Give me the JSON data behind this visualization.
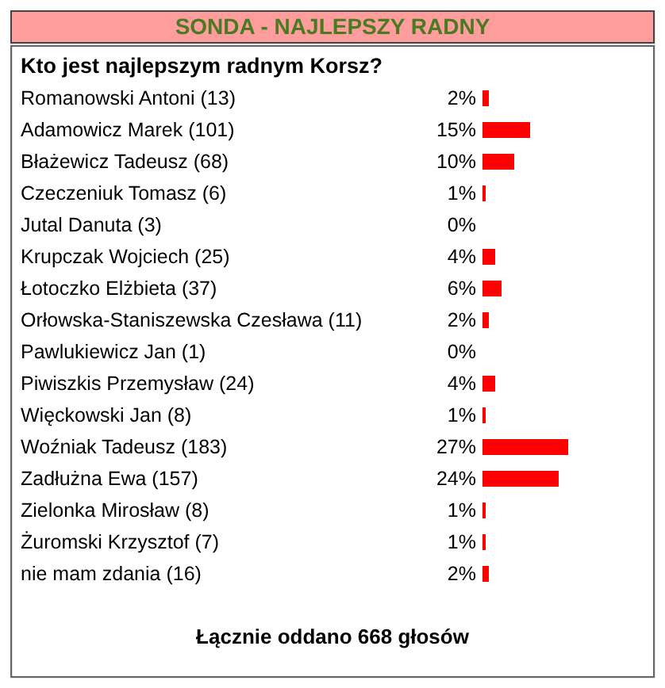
{
  "chart_data": {
    "type": "bar",
    "orientation": "horizontal",
    "title": "SONDA - NAJLEPSZY RADNY",
    "subtitle": "Kto jest najlepszym radnym Korsz?",
    "categories": [
      "Romanowski Antoni (13)",
      "Adamowicz Marek (101)",
      "Błażewicz Tadeusz (68)",
      "Czeczeniuk Tomasz (6)",
      "Jutal Danuta (3)",
      "Krupczak Wojciech (25)",
      "Łotoczko Elżbieta (37)",
      "Orłowska-Staniszewska Czesława (11)",
      "Pawlukiewicz Jan (1)",
      "Piwiszkis Przemysław (24)",
      "Więckowski Jan (8)",
      "Woźniak Tadeusz (183)",
      "Zadłużna Ewa (157)",
      "Zielonka Mirosław (8)",
      "Żuromski Krzysztof (7)",
      "nie mam zdania (16)"
    ],
    "series": [
      {
        "color": "#ff0000",
        "values": [
          2,
          15,
          10,
          1,
          0,
          4,
          6,
          2,
          0,
          4,
          1,
          27,
          24,
          1,
          1,
          2
        ],
        "value_labels": [
          "2%",
          "15%",
          "10%",
          "1%",
          "0%",
          "4%",
          "6%",
          "2%",
          "0%",
          "4%",
          "1%",
          "27%",
          "24%",
          "1%",
          "1%",
          "2%"
        ]
      }
    ],
    "annotations": [
      "Łącznie oddano 668 głosów"
    ]
  }
}
